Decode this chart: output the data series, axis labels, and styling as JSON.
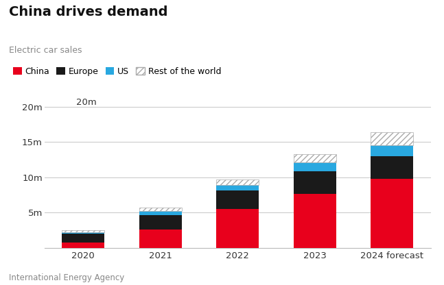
{
  "categories": [
    "2020",
    "2021",
    "2022",
    "2023",
    "2024 forecast"
  ],
  "china": [
    0.8,
    2.6,
    5.5,
    7.7,
    9.8
  ],
  "europe": [
    1.2,
    2.1,
    2.6,
    3.2,
    3.2
  ],
  "us": [
    0.25,
    0.5,
    0.8,
    1.2,
    1.6
  ],
  "rest": [
    0.3,
    0.5,
    0.8,
    1.2,
    1.8
  ],
  "china_color": "#e8001c",
  "europe_color": "#1a1a1a",
  "us_color": "#29a8e0",
  "rest_hatch": "////",
  "title": "China drives demand",
  "subtitle": "Electric car sales",
  "legend_labels": [
    "China",
    "Europe",
    "US",
    "Rest of the world"
  ],
  "ylabel_ticks": [
    0,
    5,
    10,
    15,
    20
  ],
  "ylabel_labels": [
    "",
    "5m",
    "10m",
    "15m",
    "20m"
  ],
  "ylim": [
    0,
    21
  ],
  "source": "International Energy Agency",
  "background_color": "#ffffff",
  "grid_color": "#cccccc",
  "text_color": "#333333",
  "subtitle_color": "#888888"
}
